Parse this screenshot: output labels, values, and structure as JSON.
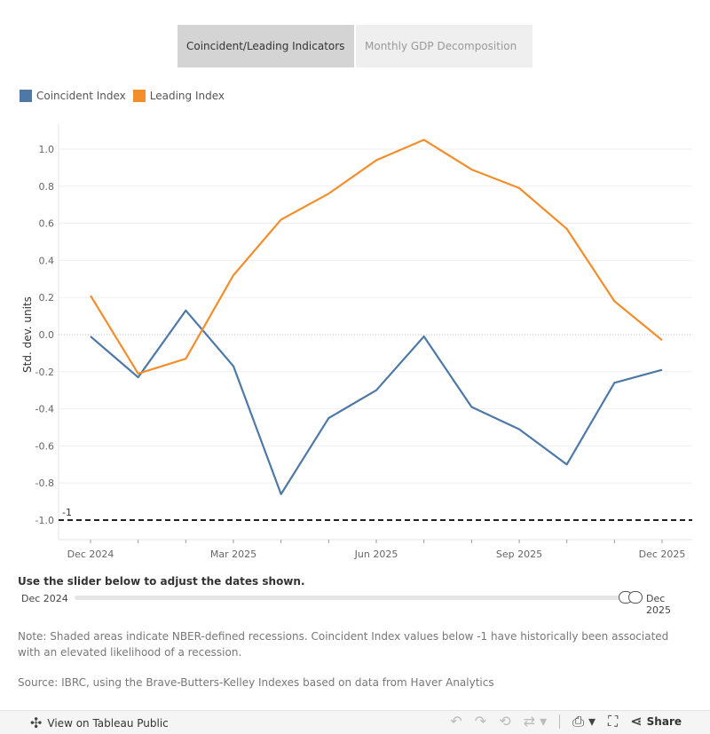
{
  "tabs": [
    {
      "label": "Coincident/Leading Indicators",
      "active": true
    },
    {
      "label": "Monthly GDP Decomposition",
      "active": false
    }
  ],
  "legend": [
    {
      "label": "Coincident Index",
      "color": "#4e79a7"
    },
    {
      "label": "Leading Index",
      "color": "#f28e2b"
    }
  ],
  "chart_data": {
    "type": "line",
    "ylabel": "Std. dev. units",
    "xlabel": "",
    "x": [
      "Dec 2024",
      "Jan 2025",
      "Feb 2025",
      "Mar 2025",
      "Apr 2025",
      "May 2025",
      "Jun 2025",
      "Jul 2025",
      "Aug 2025",
      "Sep 2025",
      "Oct 2025",
      "Nov 2025",
      "Dec 2025"
    ],
    "x_tick_labels": [
      "Dec 2024",
      "Mar 2025",
      "Jun 2025",
      "Sep 2025",
      "Dec 2025"
    ],
    "ylim": [
      -1.08,
      1.1
    ],
    "y_ticks": [
      1.0,
      0.8,
      0.6,
      0.4,
      0.2,
      0.0,
      -0.2,
      -0.4,
      -0.6,
      -0.8,
      -1.0
    ],
    "y_tick_labels": [
      "1.0",
      "0.8",
      "0.6",
      "0.4",
      "0.2",
      "0.0",
      "-0.2",
      "-0.4",
      "-0.6",
      "-0.8",
      "-1.0"
    ],
    "grid": true,
    "series": [
      {
        "name": "Coincident Index",
        "color": "#4e79a7",
        "values": [
          -0.01,
          -0.23,
          0.13,
          -0.17,
          -0.86,
          -0.45,
          -0.3,
          -0.01,
          -0.39,
          -0.51,
          -0.7,
          -0.26,
          -0.19
        ]
      },
      {
        "name": "Leading Index",
        "color": "#f28e2b",
        "values": [
          0.21,
          -0.21,
          -0.13,
          0.32,
          0.62,
          0.76,
          0.94,
          1.05,
          0.89,
          0.79,
          0.57,
          0.18,
          -0.03
        ]
      }
    ],
    "reference_line": {
      "value": -1,
      "label": "-1"
    }
  },
  "slider": {
    "caption": "Use the slider below to adjust the dates shown.",
    "min_label": "Dec 2024",
    "max_label": "Dec 2025"
  },
  "note": "Note: Shaded areas indicate NBER-defined recessions. Coincident Index values below -1 have historically been associated with an elevated likelihood of a recession.",
  "source": "Source: IBRC, using the Brave-Butters-Kelley Indexes based on data from Haver Analytics",
  "footer": {
    "view_label": "View on Tableau Public",
    "share_label": "Share"
  }
}
